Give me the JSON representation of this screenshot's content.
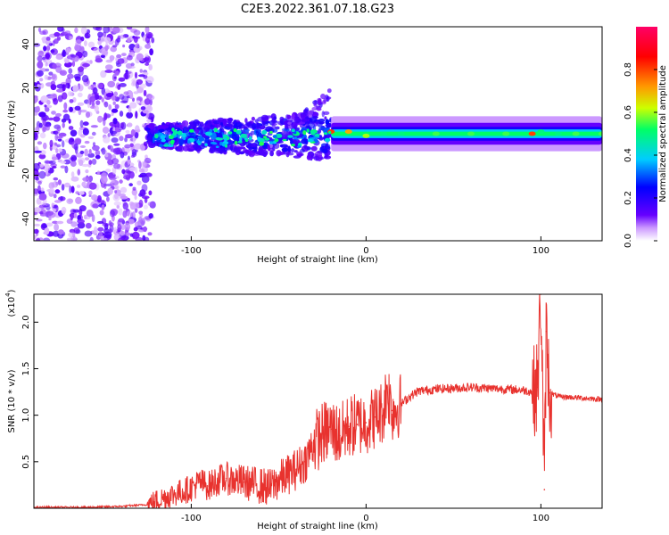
{
  "title": "C2E3.2022.361.07.18.G23",
  "chart_data": [
    {
      "type": "heatmap",
      "xlabel": "Height of straight line (km)",
      "ylabel": "Frequency (Hz)",
      "xlim": [
        -190,
        135
      ],
      "ylim": [
        -50,
        48
      ],
      "x_ticks": [
        -100,
        0,
        100
      ],
      "y_ticks": [
        -40,
        -20,
        0,
        20,
        40
      ],
      "colorbar": {
        "label": "Normalized spectral amplitude",
        "range": [
          0.0,
          1.0
        ],
        "ticks": [
          0.0,
          0.2,
          0.4,
          0.6,
          0.8
        ],
        "tick_labels": [
          "0.0",
          "0.2",
          "0.4",
          "0.6",
          "0.8"
        ],
        "colormap": [
          "#ffffff",
          "#cc99ff",
          "#6600ff",
          "#0000ff",
          "#00ccff",
          "#00ff66",
          "#ccff00",
          "#ff9900",
          "#ff0000",
          "#ff0066"
        ]
      },
      "regions": [
        {
          "x_range": [
            -190,
            -125
          ],
          "description": "scattered purple noise"
        },
        {
          "x_range": [
            -125,
            -20
          ],
          "description": "diffuse band widening with height"
        },
        {
          "x_range": [
            -20,
            135
          ],
          "description": "narrow band near 0 Hz"
        }
      ],
      "ridge_x": [
        -120,
        -110,
        -100,
        -90,
        -80,
        -70,
        -60,
        -50,
        -40,
        -30,
        -20,
        -10,
        0,
        10,
        20,
        40,
        60,
        80,
        95,
        100,
        110,
        120,
        135
      ],
      "ridge_y": [
        -3,
        -2,
        -4,
        -1,
        -3,
        -2,
        -4,
        -2,
        -1,
        0,
        0,
        0,
        -2,
        -1,
        -1,
        -1,
        -1,
        -1,
        -1,
        0,
        -1,
        -1,
        -1
      ],
      "ridge_amplitude": [
        0.3,
        0.35,
        0.4,
        0.4,
        0.45,
        0.45,
        0.45,
        0.45,
        0.5,
        0.5,
        0.8,
        0.7,
        0.6,
        0.5,
        0.5,
        0.55,
        0.55,
        0.55,
        0.8,
        0.5,
        0.5,
        0.55,
        0.55
      ]
    },
    {
      "type": "line",
      "xlabel": "Height of straight line (km)",
      "ylabel": "SNR (10 * v/v)",
      "y_exponent_label": "(x10",
      "y_exponent": "4",
      "y_exponent_close": ")",
      "xlim": [
        -190,
        135
      ],
      "ylim": [
        0,
        2.3
      ],
      "x_ticks": [
        -100,
        0,
        100
      ],
      "y_ticks": [
        0.5,
        1.0,
        1.5,
        2.0
      ],
      "y_tick_labels": [
        "0.5",
        "1.0",
        "1.5",
        "2.0"
      ],
      "color": "#e8322e",
      "series": [
        {
          "x": [
            -190,
            -160,
            -140,
            -125,
            -115,
            -105,
            -100,
            -95,
            -90,
            -85,
            -80,
            -75,
            -70,
            -65,
            -60,
            -55,
            -50,
            -45,
            -40,
            -35,
            -30,
            -25,
            -20,
            -15,
            -10,
            -5,
            0,
            5,
            10,
            12,
            15,
            20,
            25,
            30,
            40,
            50,
            60,
            70,
            80,
            90,
            95,
            98,
            100,
            102,
            103,
            105,
            110,
            120,
            135
          ],
          "y": [
            0.01,
            0.01,
            0.02,
            0.04,
            0.12,
            0.18,
            0.22,
            0.28,
            0.24,
            0.3,
            0.32,
            0.3,
            0.28,
            0.26,
            0.24,
            0.22,
            0.3,
            0.36,
            0.42,
            0.5,
            0.7,
            0.8,
            0.85,
            0.78,
            0.88,
            0.9,
            0.92,
            0.98,
            1.05,
            1.3,
            1.05,
            1.12,
            1.2,
            1.26,
            1.28,
            1.29,
            1.3,
            1.29,
            1.28,
            1.27,
            1.25,
            1.3,
            2.3,
            0.2,
            1.9,
            1.24,
            1.2,
            1.19,
            1.17
          ]
        }
      ]
    }
  ]
}
